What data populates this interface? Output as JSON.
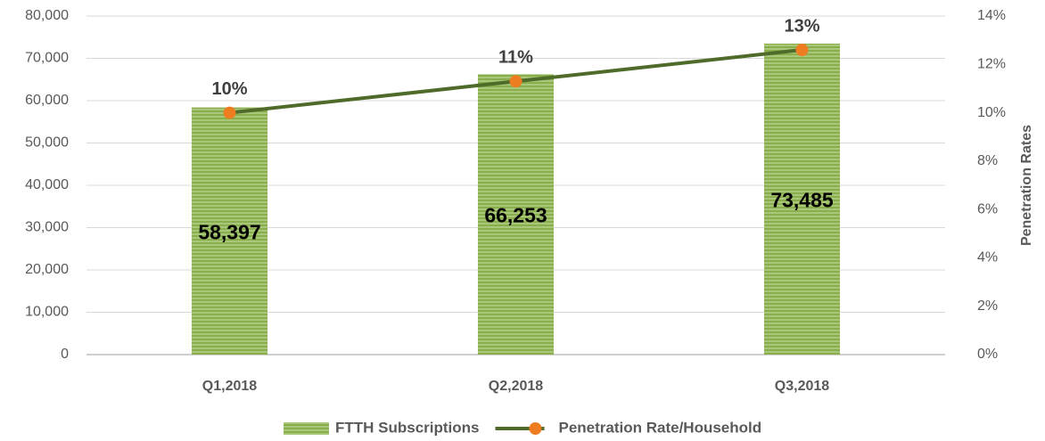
{
  "chart_data": {
    "type": "bar",
    "categories": [
      "Q1,2018",
      "Q2,2018",
      "Q3,2018"
    ],
    "series": [
      {
        "name": "FTTH Subscriptions",
        "type": "bar",
        "color": "#8aae4b",
        "values": [
          58397,
          66253,
          73485
        ],
        "value_labels": [
          "58,397",
          "66,253",
          "73,485"
        ]
      },
      {
        "name": "Penetration Rate/Household",
        "type": "line",
        "axis": "y2",
        "color": "#4f6b2a",
        "marker_color": "#ee7d22",
        "values": [
          10,
          11.3,
          12.6
        ],
        "value_labels": [
          "10%",
          "11%",
          "13%"
        ]
      }
    ],
    "ylim": [
      0,
      80000
    ],
    "yticks": [
      0,
      {
        "value": 10000,
        "label": "10,000"
      },
      {
        "value": 20000,
        "label": "20,000"
      },
      {
        "value": 30000,
        "label": "30,000"
      },
      {
        "value": 40000,
        "label": "40,000"
      },
      {
        "value": 50000,
        "label": "50,000"
      },
      {
        "value": 60000,
        "label": "60,000"
      },
      {
        "value": 70000,
        "label": "70,000"
      },
      {
        "value": 80000,
        "label": "80,000"
      }
    ],
    "y2lim": [
      0,
      14
    ],
    "y2ticks": [
      {
        "value": 0,
        "label": "0%"
      },
      {
        "value": 2,
        "label": "2%"
      },
      {
        "value": 4,
        "label": "4%"
      },
      {
        "value": 6,
        "label": "6%"
      },
      {
        "value": 8,
        "label": "8%"
      },
      {
        "value": 10,
        "label": "10%"
      },
      {
        "value": 12,
        "label": "12%"
      },
      {
        "value": 14,
        "label": "14%"
      }
    ],
    "y2label": "Penetration Rates",
    "grid": true,
    "legend": "bottom"
  }
}
